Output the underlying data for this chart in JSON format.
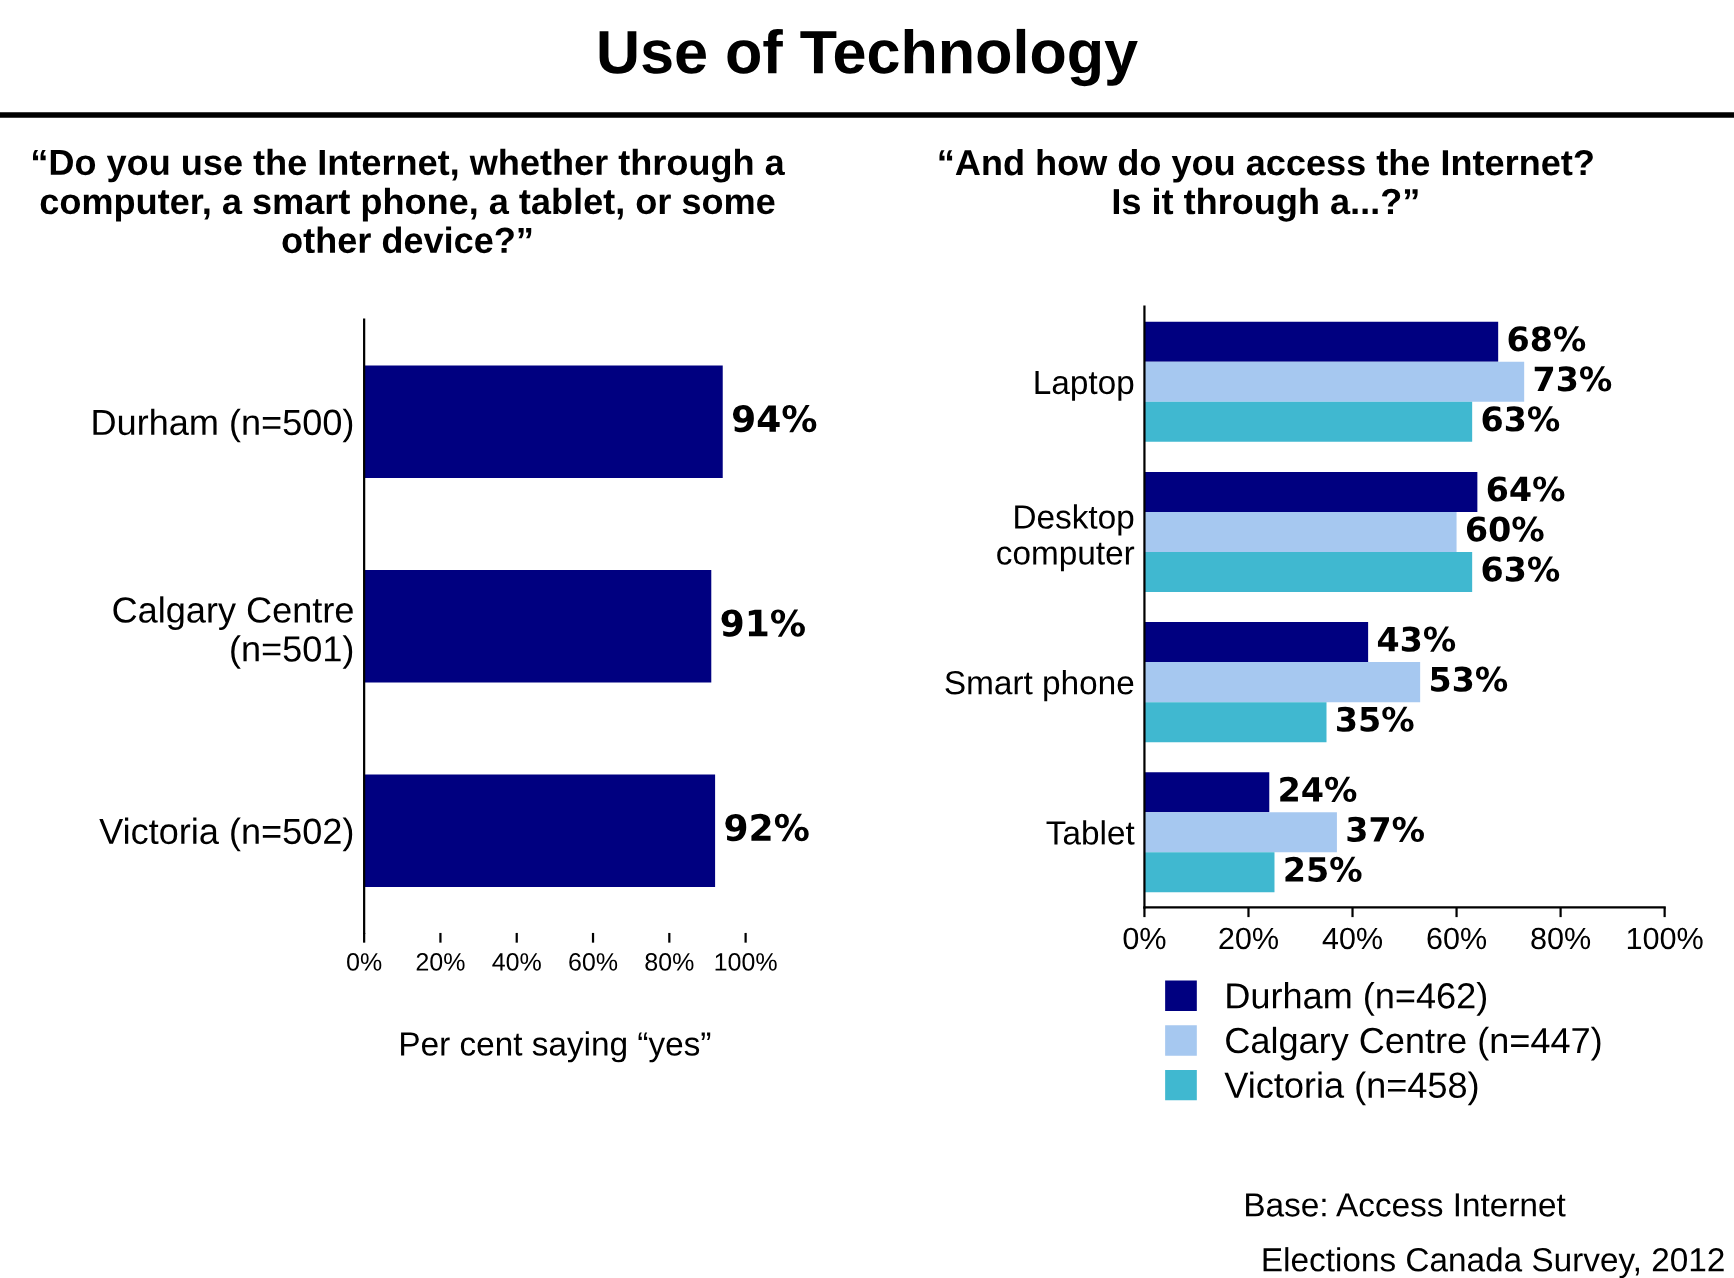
{
  "chart_data": [
    {
      "type": "bar",
      "orientation": "horizontal",
      "title": "Use of Technology",
      "subtitle": "“Do you use the Internet, whether through a computer, a smart phone, a tablet, or some other device?”",
      "categories": [
        "Durham (n=500)",
        "Calgary Centre\n(n=501)",
        "Victoria (n=502)"
      ],
      "values": [
        94,
        91,
        92
      ],
      "color": "#000080",
      "value_labels": [
        "94%",
        "91%",
        "92%"
      ],
      "xlim": [
        0,
        100
      ],
      "xticks": [
        {
          "value": 0,
          "label": "0%"
        },
        {
          "value": 20,
          "label": "20%"
        },
        {
          "value": 40,
          "label": "40%"
        },
        {
          "value": 60,
          "label": "60%"
        },
        {
          "value": 80,
          "label": "80%"
        },
        {
          "value": 100,
          "label": "100%"
        }
      ],
      "xlabel": "Per cent saying “yes”",
      "grid": false,
      "legend": false
    },
    {
      "type": "bar",
      "orientation": "horizontal",
      "title": "“And how do you access the Internet? Is it through a...?”",
      "categories": [
        "Laptop",
        "Desktop\ncomputer",
        "Smart phone",
        "Tablet"
      ],
      "series": [
        {
          "name": "Durham (n=462)",
          "color": "#000080",
          "values": [
            68,
            64,
            43,
            24
          ],
          "value_labels": [
            "68%",
            "64%",
            "43%",
            "24%"
          ]
        },
        {
          "name": "Calgary Centre (n=447)",
          "color": "#a6c8f0",
          "values": [
            73,
            60,
            53,
            37
          ],
          "value_labels": [
            "73%",
            "60%",
            "53%",
            "37%"
          ]
        },
        {
          "name": "Victoria (n=458)",
          "color": "#40b8d0",
          "values": [
            63,
            63,
            35,
            25
          ],
          "value_labels": [
            "63%",
            "63%",
            "35%",
            "25%"
          ]
        }
      ],
      "xlim": [
        0,
        100
      ],
      "xticks": [
        {
          "value": 0,
          "label": "0%"
        },
        {
          "value": 20,
          "label": "20%"
        },
        {
          "value": 40,
          "label": "40%"
        },
        {
          "value": 60,
          "label": "60%"
        },
        {
          "value": 80,
          "label": "80%"
        },
        {
          "value": 100,
          "label": "100%"
        }
      ],
      "grid": false,
      "legend": "bottom",
      "annotations": [
        "Base: Access Internet",
        "Elections Canada Survey, 2012"
      ]
    }
  ]
}
